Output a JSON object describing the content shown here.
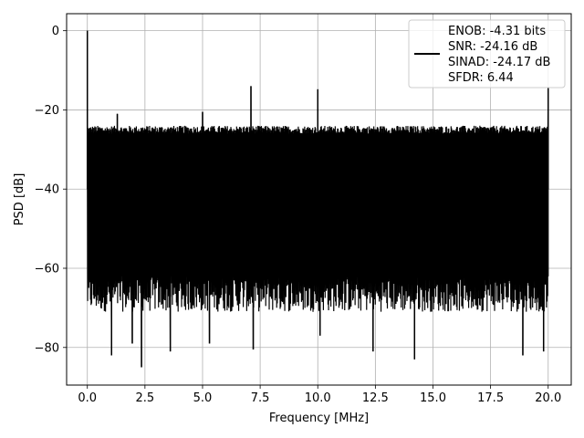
{
  "chart_data": {
    "type": "line",
    "xlabel": "Frequency [MHz]",
    "ylabel": "PSD [dB]",
    "xlim": [
      -0.9,
      21.0
    ],
    "ylim": [
      -89.5,
      4.3
    ],
    "xticks": [
      0.0,
      2.5,
      5.0,
      7.5,
      10.0,
      12.5,
      15.0,
      17.5,
      20.0
    ],
    "xtick_labels": [
      "0.0",
      "2.5",
      "5.0",
      "7.5",
      "10.0",
      "12.5",
      "15.0",
      "17.5",
      "20.0"
    ],
    "yticks": [
      0,
      -20,
      -40,
      -60,
      -80
    ],
    "ytick_labels": [
      "0",
      "−20",
      "−40",
      "−60",
      "−80"
    ],
    "grid": true,
    "legend_position": "top-right",
    "series": [
      {
        "color": "#000000",
        "x_range": [
          0.0,
          20.0
        ],
        "noise_ceiling_db": [
          -26,
          -24
        ],
        "noise_floor_db": [
          -71,
          -62
        ],
        "deep_nulls": [
          {
            "x": 1.05,
            "y": -82
          },
          {
            "x": 1.95,
            "y": -79
          },
          {
            "x": 2.35,
            "y": -85
          },
          {
            "x": 3.6,
            "y": -81
          },
          {
            "x": 5.3,
            "y": -79
          },
          {
            "x": 7.2,
            "y": -80.5
          },
          {
            "x": 10.1,
            "y": -77
          },
          {
            "x": 12.4,
            "y": -81
          },
          {
            "x": 14.2,
            "y": -83
          },
          {
            "x": 18.9,
            "y": -82
          },
          {
            "x": 19.8,
            "y": -81
          }
        ],
        "spurs": [
          {
            "x": 0.0,
            "y": 0
          },
          {
            "x": 1.3,
            "y": -21
          },
          {
            "x": 5.0,
            "y": -20.5
          },
          {
            "x": 7.1,
            "y": -14
          },
          {
            "x": 10.0,
            "y": -14.8
          },
          {
            "x": 20.0,
            "y": -14.5
          }
        ]
      }
    ],
    "legend_lines": [
      "ENOB: -4.31 bits",
      "SNR: -24.16 dB",
      "SINAD: -24.17 dB",
      "SFDR: 6.44"
    ],
    "line_color": "#000000",
    "grid_color": "#b0b0b0"
  }
}
